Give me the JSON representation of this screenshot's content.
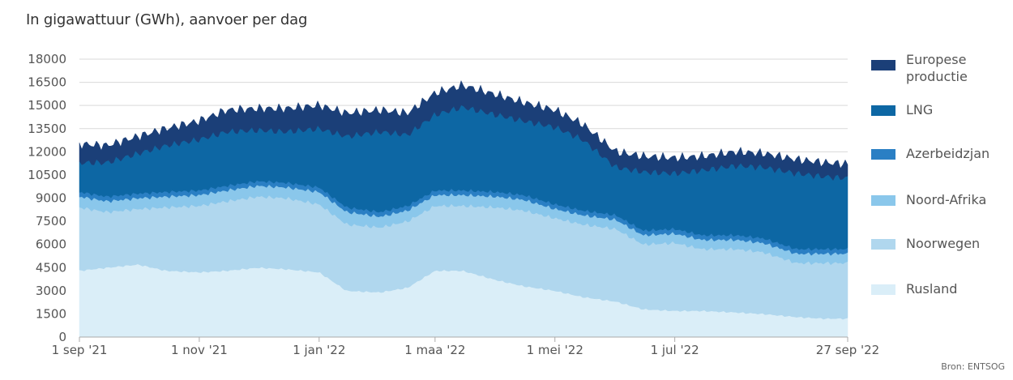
{
  "title": "In gigawattuur (GWh), aanvoer per dag",
  "source": "Bron: ENTSOG",
  "chart_data": {
    "type": "area",
    "stacked": true,
    "title": "In gigawattuur (GWh), aanvoer per dag",
    "ylim": [
      0,
      18000
    ],
    "yticks": [
      0,
      1500,
      3000,
      4500,
      6000,
      7500,
      9000,
      10500,
      12000,
      13500,
      15000,
      16500,
      18000
    ],
    "grid": true,
    "legend_position": "right",
    "x_dates": [
      "2021-09-01",
      "2021-09-15",
      "2021-10-01",
      "2021-10-15",
      "2021-11-01",
      "2021-11-15",
      "2021-12-01",
      "2021-12-15",
      "2022-01-01",
      "2022-01-15",
      "2022-02-01",
      "2022-02-15",
      "2022-03-01",
      "2022-03-15",
      "2022-04-01",
      "2022-04-15",
      "2022-05-01",
      "2022-05-15",
      "2022-06-01",
      "2022-06-15",
      "2022-07-01",
      "2022-07-15",
      "2022-08-01",
      "2022-08-15",
      "2022-09-01",
      "2022-09-15",
      "2022-09-27"
    ],
    "x_tick_labels": [
      "1 sep '21",
      "1 nov '21",
      "1 jan '22",
      "1 maa '22",
      "1 mei '22",
      "1 jul '22",
      "27 sep '22"
    ],
    "x_tick_dates": [
      "2021-09-01",
      "2021-11-01",
      "2022-01-01",
      "2022-03-01",
      "2022-05-01",
      "2022-07-01",
      "2022-09-27"
    ],
    "series": [
      {
        "name": "Rusland",
        "color": "#daeef8",
        "values": [
          4300,
          4500,
          4700,
          4300,
          4200,
          4300,
          4500,
          4400,
          4200,
          3000,
          2900,
          3200,
          4300,
          4300,
          3700,
          3300,
          3000,
          2600,
          2300,
          1800,
          1700,
          1700,
          1600,
          1500,
          1300,
          1200,
          1200
        ]
      },
      {
        "name": "Noorwegen",
        "color": "#b0d7ee",
        "values": [
          4100,
          3600,
          3600,
          4100,
          4300,
          4500,
          4600,
          4600,
          4400,
          4300,
          4200,
          4300,
          4200,
          4200,
          4700,
          4900,
          4700,
          4700,
          4700,
          4200,
          4400,
          4000,
          4100,
          4000,
          3500,
          3600,
          3600
        ]
      },
      {
        "name": "Noord-Afrika",
        "color": "#8ac7eb",
        "values": [
          700,
          700,
          700,
          700,
          700,
          700,
          700,
          700,
          800,
          800,
          700,
          700,
          700,
          700,
          700,
          700,
          600,
          600,
          600,
          600,
          600,
          600,
          600,
          600,
          600,
          600,
          600
        ]
      },
      {
        "name": "Azerbeidzjan",
        "color": "#2a7fc4",
        "values": [
          300,
          300,
          300,
          300,
          300,
          300,
          300,
          300,
          300,
          300,
          300,
          300,
          300,
          300,
          300,
          300,
          300,
          300,
          300,
          300,
          300,
          300,
          300,
          300,
          300,
          300,
          300
        ]
      },
      {
        "name": "LNG",
        "color": "#0d67a4",
        "values": [
          1900,
          2200,
          2600,
          3000,
          3300,
          3500,
          3300,
          3300,
          3800,
          4600,
          5200,
          4600,
          4900,
          5400,
          5000,
          4800,
          5000,
          4600,
          3100,
          3800,
          3600,
          4200,
          4500,
          4600,
          4900,
          4700,
          4600
        ]
      },
      {
        "name": "Europese productie",
        "color": "#1b3f78",
        "values": [
          1200,
          1100,
          1100,
          1100,
          1200,
          1400,
          1400,
          1500,
          1500,
          1500,
          1400,
          1400,
          1400,
          1400,
          1300,
          1200,
          1100,
          1000,
          1000,
          1000,
          1000,
          900,
          900,
          900,
          900,
          900,
          900
        ]
      }
    ],
    "legend_order": [
      "Europese productie",
      "LNG",
      "Azerbeidzjan",
      "Noord-Afrika",
      "Noorwegen",
      "Rusland"
    ]
  }
}
